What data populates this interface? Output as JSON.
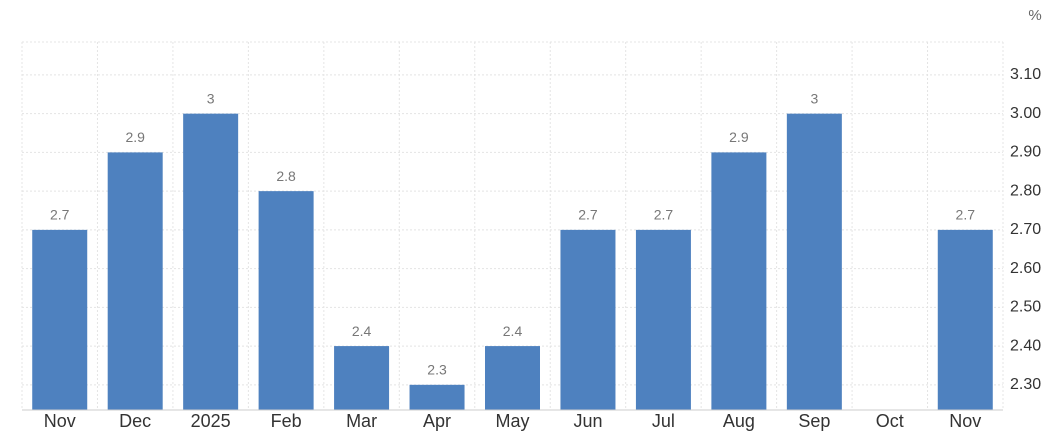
{
  "chart_data": {
    "type": "bar",
    "y_unit": "%",
    "categories": [
      "Nov",
      "Dec",
      "2025",
      "Feb",
      "Mar",
      "Apr",
      "May",
      "Jun",
      "Jul",
      "Aug",
      "Sep",
      "Oct",
      "Nov"
    ],
    "values": [
      2.7,
      2.9,
      3,
      2.8,
      2.4,
      2.3,
      2.4,
      2.7,
      2.7,
      2.9,
      3,
      null,
      2.7
    ],
    "color": "#4e81bf",
    "ylim": [
      2.235,
      3.185
    ],
    "yticks": [
      {
        "value": 2.3,
        "label": "2.30"
      },
      {
        "value": 2.4,
        "label": "2.40"
      },
      {
        "value": 2.5,
        "label": "2.50"
      },
      {
        "value": 2.6,
        "label": "2.60"
      },
      {
        "value": 2.7,
        "label": "2.70"
      },
      {
        "value": 2.8,
        "label": "2.80"
      },
      {
        "value": 2.9,
        "label": "2.90"
      },
      {
        "value": 3.0,
        "label": "3.00"
      },
      {
        "value": 3.1,
        "label": "3.10"
      }
    ],
    "grid": true
  }
}
